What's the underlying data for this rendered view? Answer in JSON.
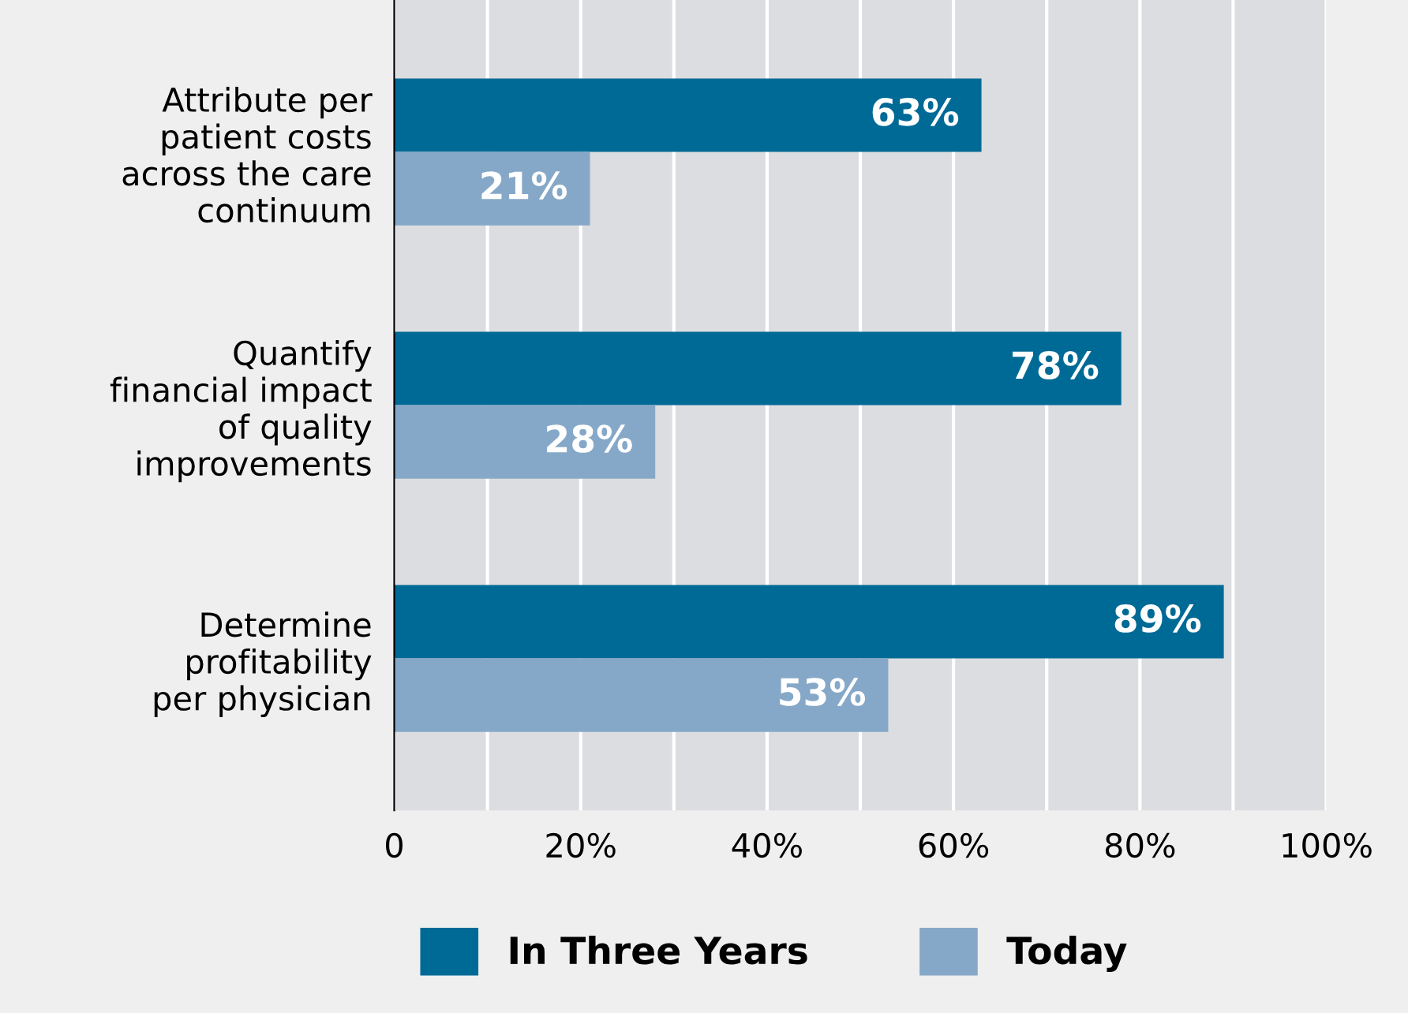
{
  "chart_data": {
    "type": "bar",
    "orientation": "horizontal",
    "categories": [
      "Attribute per\npatient costs\nacross the care\ncontinuum",
      "Quantify\nfinancial impact\nof quality\nimprovements",
      "Determine\nprofitability\nper physician"
    ],
    "series": [
      {
        "name": "In Three Years",
        "color": "#006a96",
        "values": [
          63,
          78,
          89
        ],
        "value_labels": [
          "63%",
          "78%",
          "89%"
        ]
      },
      {
        "name": "Today",
        "color": "#86a8c8",
        "values": [
          21,
          28,
          53
        ],
        "value_labels": [
          "21%",
          "28%",
          "53%"
        ]
      }
    ],
    "xlim": [
      0,
      100
    ],
    "xticks": [
      0,
      {
        "value": 10,
        "label": null
      },
      {
        "value": 20,
        "label": "20%"
      },
      {
        "value": 30,
        "label": null
      },
      {
        "value": 40,
        "label": "40%"
      },
      {
        "value": 50,
        "label": null
      },
      {
        "value": 60,
        "label": "60%"
      },
      {
        "value": 70,
        "label": null
      },
      {
        "value": 80,
        "label": "80%"
      },
      {
        "value": 90,
        "label": null
      },
      {
        "value": 100,
        "label": "100%"
      }
    ],
    "grid": "x",
    "legend": "bottom"
  }
}
